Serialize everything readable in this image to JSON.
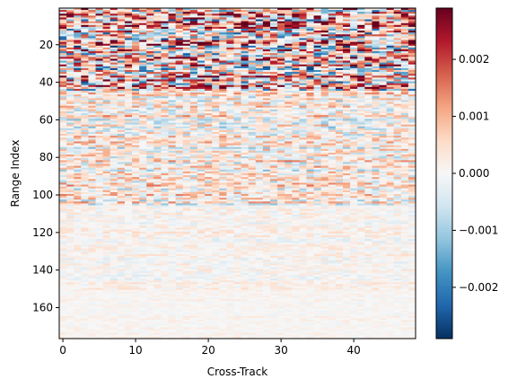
{
  "chart_data": {
    "type": "heatmap",
    "title": "",
    "xlabel": "Cross-Track",
    "ylabel": "Range Index",
    "x_range": [
      -0.5,
      48.5
    ],
    "y_range": [
      176.5,
      0.5
    ],
    "x_ticks": [
      0,
      10,
      20,
      30,
      40
    ],
    "x_tick_labels": [
      "0",
      "10",
      "20",
      "30",
      "40"
    ],
    "y_ticks": [
      20,
      40,
      60,
      80,
      100,
      120,
      140,
      160
    ],
    "y_tick_labels": [
      "20",
      "40",
      "60",
      "80",
      "100",
      "120",
      "140",
      "160"
    ],
    "colormap": "RdBu_r",
    "cmap_stops": [
      "#053061",
      "#2166ac",
      "#4393c3",
      "#92c5de",
      "#d1e5f0",
      "#f7f7f7",
      "#fddbc7",
      "#f4a582",
      "#d6604d",
      "#b2182b",
      "#67001f"
    ],
    "vmin": -0.0029,
    "vmax": 0.0029,
    "colorbar_ticks": [
      -0.002,
      -0.001,
      0.0,
      0.001,
      0.002
    ],
    "colorbar_tick_labels": [
      "−0.002",
      "−0.001",
      "0.000",
      "0.001",
      "0.002"
    ],
    "n_cols": 49,
    "n_rows": 176,
    "grid": false,
    "value_bands": [
      {
        "rows": [
          1,
          44
        ],
        "amplitude": 0.0028,
        "note_free": true
      },
      {
        "rows": [
          45,
          105
        ],
        "amplitude": 0.0012
      },
      {
        "rows": [
          106,
          150
        ],
        "amplitude": 0.00045
      },
      {
        "rows": [
          151,
          176
        ],
        "amplitude": 0.0002
      }
    ]
  }
}
